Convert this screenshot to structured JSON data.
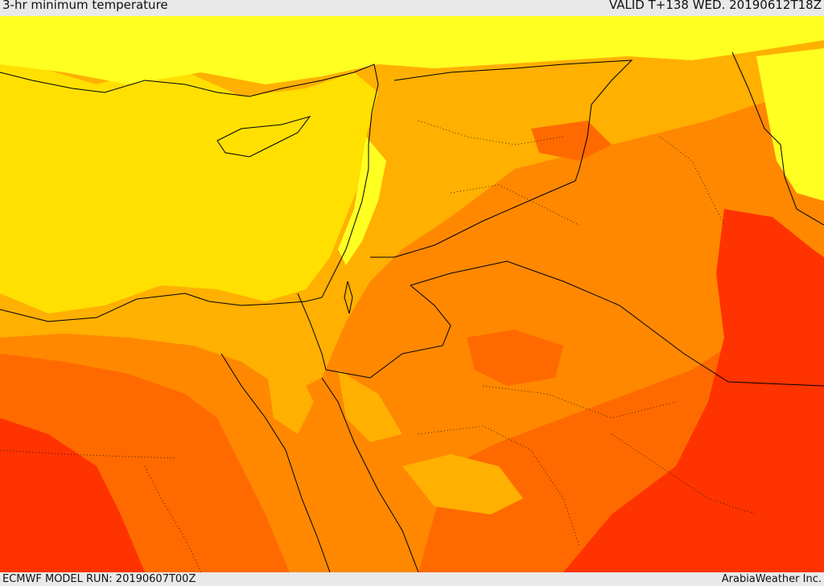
{
  "header": {
    "title": "3-hr minimum temperature",
    "valid": "VALID T+138 WED. 20190612T18Z"
  },
  "footer": {
    "model_run": "ECMWF MODEL RUN: 20190607T00Z",
    "credit": "ArabiaWeather Inc."
  },
  "colors": {
    "band_1": "#ffff22",
    "band_2": "#ffe000",
    "band_3": "#ffb000",
    "band_4": "#ff8800",
    "band_5": "#ff6a00",
    "band_6": "#ff3300",
    "coastline": "#000000"
  }
}
